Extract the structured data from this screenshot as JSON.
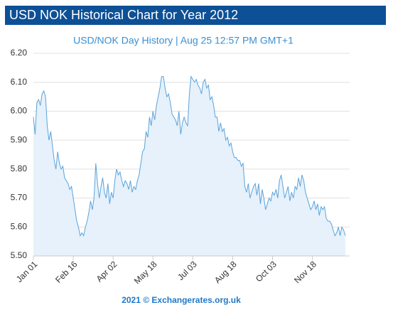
{
  "chart_data": {
    "type": "area",
    "title": "USD NOK Historical Chart for Year 2012",
    "subtitle": "USD/NOK  Day History | Aug 25 12:57 PM GMT+1",
    "footer": "2021 © Exchangerates.org.uk",
    "color": "#5ba3d9",
    "fill": "#e6f1fb",
    "grid": true,
    "xlim": [
      0,
      365
    ],
    "xticks": [
      {
        "value": 0,
        "label": "Jan 01"
      },
      {
        "value": 46,
        "label": "Feb 16"
      },
      {
        "value": 92,
        "label": "Apr 02"
      },
      {
        "value": 138,
        "label": "May 18"
      },
      {
        "value": 184,
        "label": "Jul 03"
      },
      {
        "value": 230,
        "label": "Aug 18"
      },
      {
        "value": 276,
        "label": "Oct 03"
      },
      {
        "value": 322,
        "label": "Nov 18"
      }
    ],
    "ylim": [
      5.5,
      6.2
    ],
    "yticks": [
      {
        "value": 5.5,
        "label": "5.50"
      },
      {
        "value": 5.6,
        "label": "5.60"
      },
      {
        "value": 5.7,
        "label": "5.70"
      },
      {
        "value": 5.8,
        "label": "5.80"
      },
      {
        "value": 5.9,
        "label": "5.90"
      },
      {
        "value": 6.0,
        "label": "6.00"
      },
      {
        "value": 6.1,
        "label": "6.10"
      },
      {
        "value": 6.2,
        "label": "6.20"
      }
    ],
    "x": [
      0,
      2,
      4,
      6,
      8,
      10,
      12,
      14,
      16,
      18,
      20,
      22,
      24,
      26,
      28,
      30,
      32,
      34,
      36,
      38,
      40,
      42,
      44,
      46,
      48,
      50,
      52,
      54,
      56,
      58,
      60,
      62,
      64,
      66,
      68,
      70,
      72,
      74,
      76,
      78,
      80,
      82,
      84,
      86,
      88,
      90,
      92,
      94,
      96,
      98,
      100,
      102,
      104,
      106,
      108,
      110,
      112,
      114,
      116,
      118,
      120,
      122,
      124,
      126,
      128,
      130,
      132,
      134,
      136,
      138,
      140,
      142,
      144,
      146,
      148,
      150,
      152,
      154,
      156,
      158,
      160,
      162,
      164,
      166,
      168,
      170,
      172,
      174,
      176,
      178,
      180,
      182,
      184,
      186,
      188,
      190,
      192,
      194,
      196,
      198,
      200,
      202,
      204,
      206,
      208,
      210,
      212,
      214,
      216,
      218,
      220,
      222,
      224,
      226,
      228,
      230,
      232,
      234,
      236,
      238,
      240,
      242,
      244,
      246,
      248,
      250,
      252,
      254,
      256,
      258,
      260,
      262,
      264,
      266,
      268,
      270,
      272,
      274,
      276,
      278,
      280,
      282,
      284,
      286,
      288,
      290,
      292,
      294,
      296,
      298,
      300,
      302,
      304,
      306,
      308,
      310,
      312,
      314,
      316,
      318,
      320,
      322,
      324,
      326,
      328,
      330,
      332,
      334,
      336,
      338,
      340,
      342,
      344,
      346,
      348,
      350,
      352,
      354,
      356,
      358,
      360
    ],
    "values": [
      5.98,
      5.92,
      6.03,
      6.04,
      6.02,
      6.06,
      6.07,
      6.05,
      5.95,
      5.9,
      5.93,
      5.88,
      5.83,
      5.8,
      5.86,
      5.82,
      5.8,
      5.81,
      5.77,
      5.76,
      5.75,
      5.73,
      5.74,
      5.7,
      5.66,
      5.62,
      5.6,
      5.57,
      5.58,
      5.57,
      5.6,
      5.62,
      5.65,
      5.69,
      5.66,
      5.7,
      5.82,
      5.75,
      5.7,
      5.74,
      5.77,
      5.72,
      5.7,
      5.75,
      5.68,
      5.72,
      5.7,
      5.76,
      5.8,
      5.78,
      5.79,
      5.76,
      5.74,
      5.76,
      5.75,
      5.73,
      5.76,
      5.72,
      5.74,
      5.73,
      5.76,
      5.78,
      5.82,
      5.86,
      5.87,
      5.93,
      5.91,
      5.98,
      5.95,
      6.0,
      5.97,
      6.02,
      6.05,
      6.08,
      6.12,
      6.12,
      6.08,
      6.05,
      6.06,
      6.03,
      5.99,
      5.98,
      5.97,
      5.95,
      6.0,
      5.92,
      5.96,
      5.98,
      5.96,
      5.95,
      6.06,
      6.12,
      6.11,
      6.1,
      6.11,
      6.09,
      6.08,
      6.06,
      6.1,
      6.11,
      6.08,
      6.09,
      6.04,
      6.05,
      6.02,
      5.98,
      5.98,
      5.93,
      5.96,
      5.93,
      5.94,
      5.9,
      5.91,
      5.88,
      5.89,
      5.86,
      5.84,
      5.84,
      5.83,
      5.83,
      5.81,
      5.82,
      5.74,
      5.72,
      5.75,
      5.7,
      5.72,
      5.74,
      5.75,
      5.71,
      5.75,
      5.68,
      5.73,
      5.7,
      5.66,
      5.68,
      5.7,
      5.69,
      5.72,
      5.71,
      5.73,
      5.7,
      5.76,
      5.78,
      5.74,
      5.7,
      5.72,
      5.74,
      5.69,
      5.72,
      5.7,
      5.74,
      5.73,
      5.77,
      5.74,
      5.78,
      5.76,
      5.72,
      5.7,
      5.68,
      5.66,
      5.67,
      5.69,
      5.66,
      5.68,
      5.64,
      5.67,
      5.66,
      5.67,
      5.63,
      5.62,
      5.62,
      5.61,
      5.59,
      5.57,
      5.58,
      5.6,
      5.57,
      5.6,
      5.59,
      5.57
    ]
  }
}
